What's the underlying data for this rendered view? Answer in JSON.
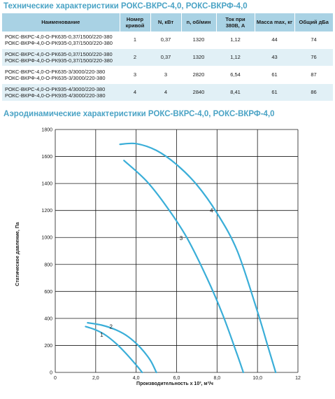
{
  "specs": {
    "title": "Технические характеристики РОКС-ВКРС-4,0, РОКС-ВКРФ-4,0",
    "headers": [
      "Наименование",
      "Номер кривой",
      "N, кВт",
      "n, об/мин",
      "Ток при 380В, А",
      "Масса max, кг",
      "Общий дБа"
    ],
    "rows": [
      {
        "name1": "РОКС-ВКРС-4,0-О-РК635-0,37/1500/220-380",
        "name2": "РОКС-ВКРФ-4,0-О-РК935-0,37/1500/220-380",
        "curve": "1",
        "power": "0,37",
        "rpm": "1320",
        "current": "1,12",
        "mass": "44",
        "noise": "74"
      },
      {
        "name1": "РОКС-ВКРС-4,0-О-РК635-0,37/1500/220-380",
        "name2": "РОКС-ВКРФ-4,0-О-РК935-0,37/1500/220-380",
        "curve": "2",
        "power": "0,37",
        "rpm": "1320",
        "current": "1,12",
        "mass": "43",
        "noise": "76"
      },
      {
        "name1": "РОКС-ВКРС-4,0-О-РК635-3/3000/220-380",
        "name2": "РОКС-ВКРФ-4,0-О-РК635-3/3000/220-380",
        "curve": "3",
        "power": "3",
        "rpm": "2820",
        "current": "6,54",
        "mass": "61",
        "noise": "87"
      },
      {
        "name1": "РОКС-ВКРС-4,0-О-РК935-4/3000/220-380",
        "name2": "РОКС-ВКРФ-4,0-О-РК935-4/3000/220-380",
        "curve": "4",
        "power": "4",
        "rpm": "2840",
        "current": "8,41",
        "mass": "61",
        "noise": "86"
      }
    ]
  },
  "chart_data": {
    "type": "line",
    "title": "Аэродинамические характеристики РОКС-ВКРС-4,0, РОКС-ВКРФ-4,0",
    "xlabel": "Производительность х 10³, м³/ч",
    "ylabel": "Статическое давление, Па",
    "xlim": [
      0,
      12
    ],
    "ylim": [
      0,
      1800
    ],
    "xticks": [
      "0",
      "2,0",
      "4,0",
      "6,0",
      "8,0",
      "10,0",
      "12"
    ],
    "yticks": [
      "0",
      "200",
      "400",
      "600",
      "800",
      "1000",
      "1200",
      "1400",
      "1600",
      "1800"
    ],
    "grid": true,
    "curve_color": "#3aaed8",
    "series": [
      {
        "name": "1",
        "x": [
          1.5,
          2.0,
          2.5,
          3.0,
          3.5,
          4.0,
          4.3
        ],
        "y": [
          340,
          315,
          275,
          215,
          140,
          55,
          0
        ]
      },
      {
        "name": "2",
        "x": [
          1.6,
          2.3,
          3.0,
          3.6,
          4.2,
          4.7,
          5.0
        ],
        "y": [
          368,
          350,
          315,
          265,
          185,
          90,
          0
        ]
      },
      {
        "name": "3",
        "x": [
          3.4,
          4.5,
          5.5,
          6.5,
          7.5,
          8.3,
          9.0,
          9.3
        ],
        "y": [
          1570,
          1420,
          1230,
          1000,
          700,
          420,
          130,
          0
        ]
      },
      {
        "name": "4",
        "x": [
          3.2,
          4.0,
          5.0,
          6.0,
          7.0,
          8.0,
          9.0,
          10.0,
          10.5,
          10.9
        ],
        "y": [
          1690,
          1695,
          1645,
          1540,
          1390,
          1180,
          900,
          450,
          200,
          0
        ]
      }
    ]
  }
}
